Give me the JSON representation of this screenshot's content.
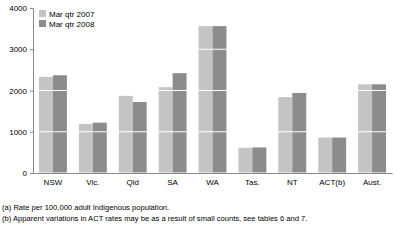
{
  "chart_data": {
    "type": "bar",
    "categories": [
      "NSW",
      "Vic.",
      "Qld",
      "SA",
      "WA",
      "Tas.",
      "NT",
      "ACT(b)",
      "Aust."
    ],
    "series": [
      {
        "name": "Mar qtr 2007",
        "color": "#c4c4c4",
        "values": [
          2330,
          1190,
          1870,
          2080,
          3560,
          610,
          1840,
          860,
          2150
        ]
      },
      {
        "name": "Mar qtr 2008",
        "color": "#8c8c8c",
        "values": [
          2370,
          1220,
          1720,
          2420,
          3560,
          620,
          1940,
          860,
          2150
        ]
      }
    ],
    "ylim": [
      0,
      4000
    ],
    "yticks": [
      0,
      1000,
      2000,
      3000,
      4000
    ],
    "grid": true,
    "legend": "upper left",
    "annotations": [
      "(a) Rate per 100,000 adult Indigenous population.",
      "(b) Apparent variations in ACT rates may be as a result of small counts, see tables 6 and 7."
    ]
  }
}
